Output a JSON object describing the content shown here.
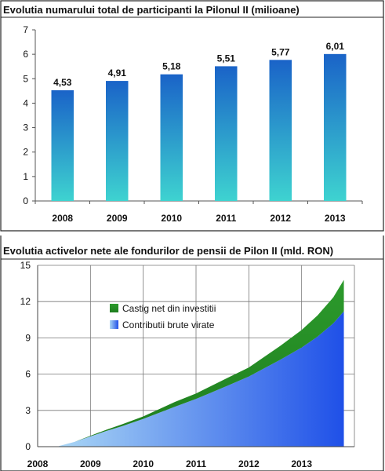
{
  "colors": {
    "bar_top": "#1a63c8",
    "bar_bottom": "#3ed3d0",
    "gain_top": "#2c9a2c",
    "gain_bottom": "#1e7d1e",
    "contrib_left": "#a9d6f5",
    "contrib_right": "#1f50e8"
  },
  "chart_data": [
    {
      "type": "bar",
      "title": "Evolutia numarului total de participanti la Pilonul II (milioane)",
      "categories": [
        "2008",
        "2009",
        "2010",
        "2011",
        "2012",
        "2013"
      ],
      "values": [
        4.53,
        4.91,
        5.18,
        5.51,
        5.77,
        6.01
      ],
      "value_labels": [
        "4,53",
        "4,91",
        "5,18",
        "5,51",
        "5,77",
        "6,01"
      ],
      "ylim": [
        0,
        7
      ],
      "yticks": [
        "0",
        "1",
        "2",
        "3",
        "4",
        "5",
        "6",
        "7"
      ],
      "grid": false,
      "xlabel": "",
      "ylabel": ""
    },
    {
      "type": "area",
      "title": "Evolutia activelor nete ale fondurilor de pensii de Pilon II (mld. RON)",
      "x_labels": [
        "2008",
        "2009",
        "2010",
        "2011",
        "2012",
        "2013"
      ],
      "ylim": [
        0,
        15
      ],
      "yticks": [
        "0",
        "3",
        "6",
        "9",
        "12",
        "15"
      ],
      "grid": true,
      "legend_position": "upper-left",
      "x": [
        2008.4,
        2008.7,
        2009.0,
        2009.3,
        2009.6,
        2010.0,
        2010.3,
        2010.6,
        2011.0,
        2011.3,
        2011.6,
        2012.0,
        2012.3,
        2012.6,
        2013.0,
        2013.3,
        2013.6,
        2013.8
      ],
      "series": [
        {
          "name": "Contributii brute virate",
          "values": [
            0.05,
            0.4,
            0.85,
            1.3,
            1.7,
            2.3,
            2.8,
            3.3,
            3.95,
            4.5,
            5.05,
            5.8,
            6.5,
            7.2,
            8.2,
            9.1,
            10.2,
            11.2
          ]
        },
        {
          "name": "Castig net din investitii",
          "values": [
            0.0,
            0.0,
            0.05,
            0.1,
            0.15,
            0.2,
            0.3,
            0.4,
            0.45,
            0.55,
            0.65,
            0.75,
            0.95,
            1.15,
            1.45,
            1.75,
            2.15,
            2.6
          ]
        }
      ],
      "xlabel": "",
      "ylabel": ""
    }
  ]
}
